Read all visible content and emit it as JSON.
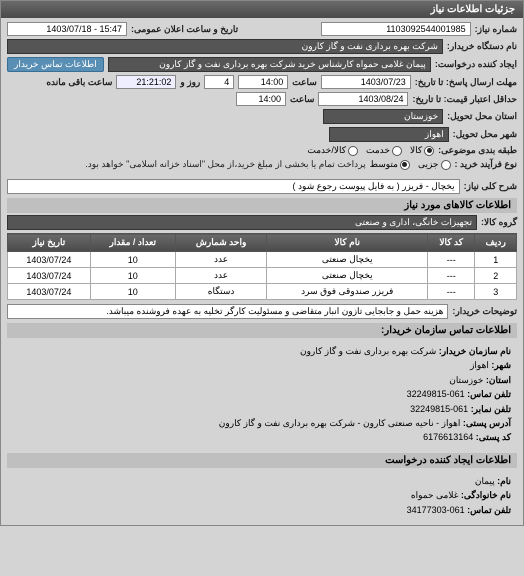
{
  "panel_title": "جزئیات اطلاعات نیاز",
  "header": {
    "request_no_label": "شماره نیاز:",
    "request_no": "1103092544001985",
    "public_datetime_label": "تاریخ و ساعت اعلان عمومی:",
    "public_datetime": "15:47 - 1403/07/18"
  },
  "org": {
    "org_name_label": "نام دستگاه خریدار:",
    "org_name": "شرکت بهره برداری نفت و گاز کارون",
    "requester_label": "ایجاد کننده درخواست:",
    "requester": "پیمان غلامی حمواه کارشناس خرید شرکت بهره برداری نفت و گاز کارون",
    "contact_btn": "اطلاعات تماس خریدار"
  },
  "deadlines": {
    "reply_until_label": "مهلت ارسال پاسخ: تا تاریخ:",
    "reply_date": "1403/07/23",
    "reply_clock_label": "ساعت",
    "reply_clock": "14:00",
    "days_label": "روز و",
    "days": "4",
    "remain": "21:21:02",
    "remain_label": "ساعت باقی مانده",
    "validity_label": "حداقل اعتبار قیمت: تا تاریخ:",
    "validity_date": "1403/08/24",
    "validity_clock_label": "ساعت",
    "validity_clock": "14:00"
  },
  "location": {
    "province_label": "استان محل تحویل:",
    "province": "خوزستان",
    "city_label": "شهر محل تحویل:",
    "city": "اهواز"
  },
  "classification": {
    "subject_class_label": "طبقه بندی موضوعی:",
    "options": [
      "کالا",
      "خدمت",
      "کالا/خدمت"
    ],
    "selected": 0,
    "purchase_type_label": "نوع فرآیند خرید :",
    "purchase_options": [
      "جزیی",
      "متوسط"
    ],
    "purchase_selected": 1,
    "purchase_note": "پرداخت تمام یا بخشی از مبلغ خرید،از محل \"اسناد خزانه اسلامی\" خواهد بود."
  },
  "need": {
    "general_desc_label": "شرح کلی نیاز:",
    "general_desc": "یخچال - فریزر ( به فایل پیوست رجوع شود )"
  },
  "items_section_title": "اطلاعات کالاهای مورد نیاز",
  "group": {
    "group_label": "گروه کالا:",
    "group_value": "تجهیزات خانگی، اداری و صنعتی"
  },
  "table": {
    "columns": [
      "ردیف",
      "کد کالا",
      "نام کالا",
      "واحد شمارش",
      "تعداد / مقدار",
      "تاریخ نیاز"
    ],
    "rows": [
      [
        "1",
        "---",
        "یخچال صنعتی",
        "عدد",
        "10",
        "1403/07/24"
      ],
      [
        "2",
        "---",
        "یخچال صنعتی",
        "عدد",
        "10",
        "1403/07/24"
      ],
      [
        "3",
        "---",
        "فریزر صندوقی فوق سرد",
        "دستگاه",
        "10",
        "1403/07/24"
      ]
    ]
  },
  "buyer_note": {
    "label": "توضیحات خریدار:",
    "text": "هزینه حمل و جابجایی تازون انبار متقاضی و مسئولیت کارگر تخلیه به عهده فروشنده میباشد."
  },
  "contact_section_title": "اطلاعات تماس سازمان خریدار:",
  "contact": {
    "org_label": "نام سازمان خریدار:",
    "org": "شرکت بهره برداری نفت و گاز کارون",
    "city_label": "شهر:",
    "city": "اهواز",
    "province_label": "استان:",
    "province": "خوزستان",
    "phone_label": "تلفن تماس:",
    "phone": "061-32249815",
    "fax_label": "تلفن نمابر:",
    "fax": "061-32249815",
    "address_label": "آدرس پستی:",
    "address": "اهواز - ناحیه صنعتی کارون - شرکت بهره برداری نفت و گاز کارون",
    "postal_label": "کد پستی:",
    "postal": "6176613164"
  },
  "creator_section_title": "اطلاعات ایجاد کننده درخواست",
  "creator": {
    "name_label": "نام:",
    "name": "پیمان",
    "family_label": "نام خانوادگی:",
    "family": "غلامی حمواه",
    "phone_label": "تلفن تماس:",
    "phone": "061-34177303"
  }
}
